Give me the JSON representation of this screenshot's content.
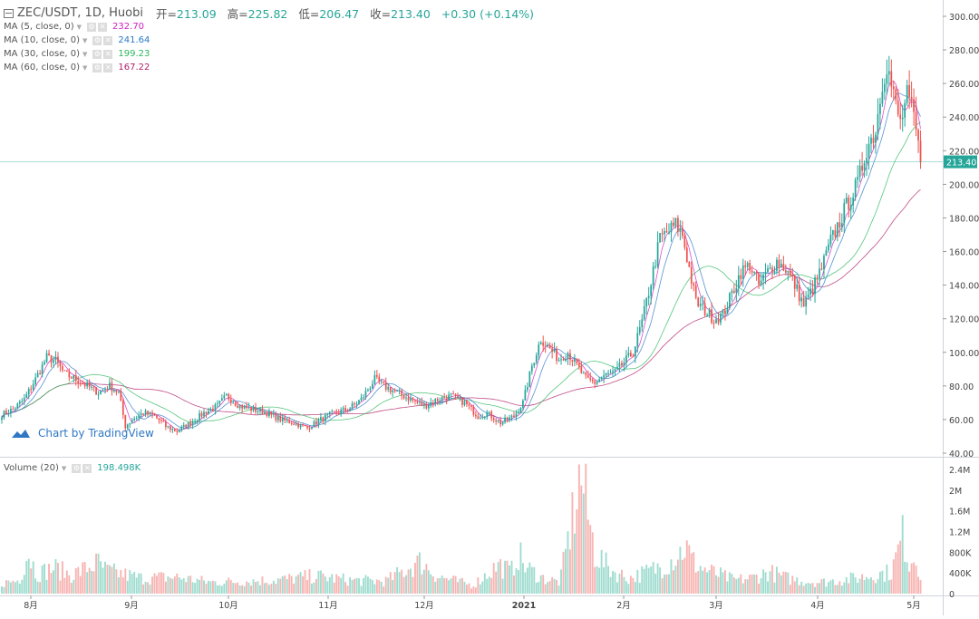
{
  "header": {
    "symbol": "ZEC/USDT, 1D, Huobi",
    "open_label": "开=",
    "open": "213.09",
    "high_label": "高=",
    "high": "225.82",
    "low_label": "低=",
    "low": "206.47",
    "close_label": "收=",
    "close": "213.40",
    "change": "+0.30 (+0.14%)"
  },
  "indicators": [
    {
      "label": "MA (5, close, 0)",
      "value": "232.70",
      "color": "#d020c0"
    },
    {
      "label": "MA (10, close, 0)",
      "value": "241.64",
      "color": "#2a78c8"
    },
    {
      "label": "MA (30, close, 0)",
      "value": "199.23",
      "color": "#2cb85c"
    },
    {
      "label": "MA (60, close, 0)",
      "value": "167.22",
      "color": "#b0206a"
    }
  ],
  "volume": {
    "label": "Volume (20)",
    "value": "198.498K"
  },
  "watermark": "Chart by TradingView",
  "last_price_tag": "213.40",
  "colors": {
    "up": "#26a69a",
    "down": "#ef5350",
    "up_vol": "#9fdccf",
    "down_vol": "#f7b4b2",
    "tag_bg": "#26a69a"
  },
  "chart_data": {
    "type": "candlestick",
    "y_axis_ticks": [
      "300.00",
      "280.00",
      "260.00",
      "240.00",
      "220.00",
      "200.00",
      "180.00",
      "160.00",
      "140.00",
      "120.00",
      "100.00",
      "80.00",
      "60.00",
      "40.00"
    ],
    "ylim": [
      40,
      300
    ],
    "volume_axis_ticks": [
      "2.4M",
      "2M",
      "1.6M",
      "1.2M",
      "800K",
      "400K",
      "0"
    ],
    "volume_ylim": [
      0,
      2400000
    ],
    "x_axis_labels": [
      "8月",
      "9月",
      "10月",
      "11月",
      "12月",
      "2021",
      "2月",
      "3月",
      "4月",
      "5月"
    ],
    "price_anchors": [
      [
        0,
        63
      ],
      [
        5,
        66
      ],
      [
        10,
        72
      ],
      [
        15,
        84
      ],
      [
        20,
        97
      ],
      [
        24,
        95
      ],
      [
        28,
        87
      ],
      [
        33,
        84
      ],
      [
        38,
        80
      ],
      [
        43,
        76
      ],
      [
        48,
        80
      ],
      [
        52,
        76
      ],
      [
        55,
        56
      ],
      [
        58,
        60
      ],
      [
        63,
        64
      ],
      [
        68,
        62
      ],
      [
        73,
        56
      ],
      [
        78,
        53
      ],
      [
        84,
        58
      ],
      [
        90,
        64
      ],
      [
        96,
        68
      ],
      [
        100,
        74
      ],
      [
        106,
        68
      ],
      [
        112,
        66
      ],
      [
        118,
        64
      ],
      [
        124,
        60
      ],
      [
        130,
        58
      ],
      [
        136,
        55
      ],
      [
        142,
        60
      ],
      [
        148,
        64
      ],
      [
        154,
        66
      ],
      [
        160,
        72
      ],
      [
        166,
        84
      ],
      [
        170,
        80
      ],
      [
        176,
        76
      ],
      [
        182,
        72
      ],
      [
        188,
        68
      ],
      [
        194,
        72
      ],
      [
        200,
        74
      ],
      [
        206,
        70
      ],
      [
        212,
        62
      ],
      [
        216,
        64
      ],
      [
        222,
        58
      ],
      [
        228,
        62
      ],
      [
        232,
        70
      ],
      [
        236,
        92
      ],
      [
        240,
        108
      ],
      [
        244,
        102
      ],
      [
        248,
        96
      ],
      [
        252,
        100
      ],
      [
        256,
        92
      ],
      [
        260,
        84
      ],
      [
        264,
        82
      ],
      [
        268,
        86
      ],
      [
        273,
        88
      ],
      [
        277,
        94
      ],
      [
        281,
        100
      ],
      [
        285,
        118
      ],
      [
        289,
        142
      ],
      [
        293,
        168
      ],
      [
        297,
        172
      ],
      [
        300,
        176
      ],
      [
        303,
        170
      ],
      [
        306,
        150
      ],
      [
        309,
        130
      ],
      [
        313,
        125
      ],
      [
        317,
        120
      ],
      [
        321,
        122
      ],
      [
        325,
        135
      ],
      [
        329,
        148
      ],
      [
        333,
        152
      ],
      [
        337,
        140
      ],
      [
        341,
        148
      ],
      [
        345,
        154
      ],
      [
        349,
        150
      ],
      [
        353,
        140
      ],
      [
        357,
        128
      ],
      [
        361,
        138
      ],
      [
        365,
        150
      ],
      [
        369,
        166
      ],
      [
        373,
        178
      ],
      [
        377,
        190
      ],
      [
        381,
        200
      ],
      [
        385,
        222
      ],
      [
        389,
        232
      ],
      [
        392,
        262
      ],
      [
        394,
        272
      ],
      [
        397,
        252
      ],
      [
        400,
        236
      ],
      [
        403,
        252
      ],
      [
        406,
        240
      ],
      [
        409,
        213
      ]
    ],
    "volume_anchors": [
      [
        0,
        200
      ],
      [
        10,
        260
      ],
      [
        15,
        820
      ],
      [
        20,
        380
      ],
      [
        30,
        500
      ],
      [
        40,
        360
      ],
      [
        55,
        590
      ],
      [
        60,
        440
      ],
      [
        80,
        300
      ],
      [
        100,
        320
      ],
      [
        120,
        220
      ],
      [
        140,
        240
      ],
      [
        160,
        270
      ],
      [
        180,
        340
      ],
      [
        200,
        260
      ],
      [
        220,
        240
      ],
      [
        240,
        620
      ],
      [
        250,
        330
      ],
      [
        270,
        160
      ],
      [
        285,
        560
      ],
      [
        292,
        420
      ],
      [
        296,
        790
      ],
      [
        300,
        520
      ],
      [
        310,
        300
      ],
      [
        320,
        220
      ],
      [
        332,
        2300
      ],
      [
        336,
        1520
      ],
      [
        340,
        800
      ],
      [
        346,
        560
      ],
      [
        352,
        400
      ],
      [
        360,
        300
      ],
      [
        370,
        420
      ],
      [
        380,
        560
      ],
      [
        388,
        760
      ],
      [
        392,
        920
      ],
      [
        396,
        620
      ],
      [
        402,
        480
      ],
      [
        410,
        380
      ],
      [
        420,
        260
      ],
      [
        430,
        300
      ],
      [
        440,
        420
      ],
      [
        450,
        300
      ],
      [
        460,
        240
      ],
      [
        470,
        220
      ],
      [
        480,
        260
      ],
      [
        490,
        300
      ],
      [
        500,
        360
      ],
      [
        510,
        420
      ],
      [
        517,
        1150
      ],
      [
        520,
        600
      ],
      [
        524,
        760
      ],
      [
        528,
        198
      ]
    ],
    "ma_valuesa_last": {
      "ma5": 232.7,
      "ma10": 241.64,
      "ma30": 199.23,
      "ma60": 167.22
    }
  }
}
